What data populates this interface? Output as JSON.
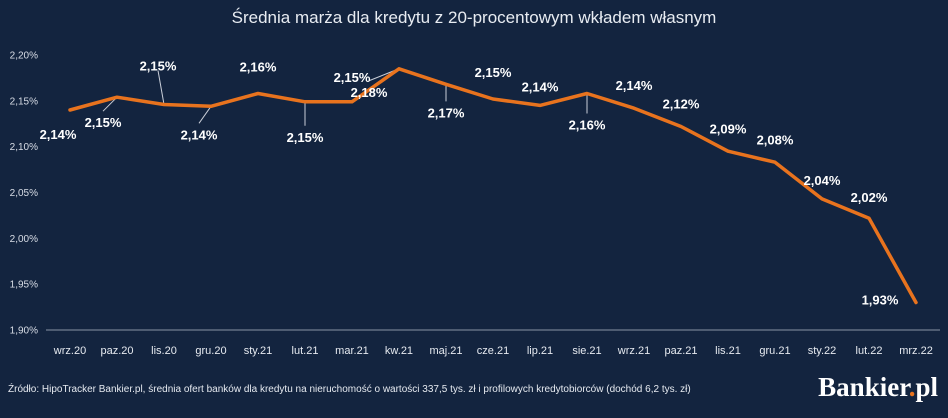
{
  "chart_data": {
    "type": "line",
    "title": "Średnia marża dla kredytu z 20-procentowym wkładem własnym",
    "categories": [
      "wrz.20",
      "paz.20",
      "lis.20",
      "gru.20",
      "sty.21",
      "lut.21",
      "mar.21",
      "kw.21",
      "maj.21",
      "cze.21",
      "lip.21",
      "sie.21",
      "wrz.21",
      "paz.21",
      "lis.21",
      "gru.21",
      "sty.22",
      "lut.22",
      "mrz.22"
    ],
    "series": [
      {
        "values": [
          2.14,
          2.154,
          2.146,
          2.144,
          2.158,
          2.149,
          2.149,
          2.185,
          2.168,
          2.152,
          2.145,
          2.158,
          2.142,
          2.122,
          2.095,
          2.083,
          2.043,
          2.022,
          1.93
        ],
        "labels": [
          "2,14%",
          "2,15%",
          "2,15%",
          "2,14%",
          "2,16%",
          "2,15%",
          "2,15%",
          "2,18%",
          "2,17%",
          "2,15%",
          "2,14%",
          "2,16%",
          "2,14%",
          "2,12%",
          "2,09%",
          "2,08%",
          "2,04%",
          "2,02%",
          "1,93%"
        ]
      }
    ],
    "yticks": [
      "1,90%",
      "1,95%",
      "2,00%",
      "2,05%",
      "2,10%",
      "2,15%",
      "2,20%"
    ],
    "ytick_values": [
      1.9,
      1.95,
      2.0,
      2.05,
      2.1,
      2.15,
      2.2
    ],
    "ylim": [
      1.9,
      2.2
    ],
    "grid": false,
    "line_color": "#e8731e",
    "background_color": "#13243f"
  },
  "footer": {
    "source": "Źródło: HipoTracker Bankier.pl, średnia ofert banków dla kredytu na nieruchomość o wartości 337,5 tys. zł i profilowych kredytobiorców (dochód 6,2 tys. zł)",
    "logo_main": "Bankier",
    "logo_dot": ".",
    "logo_suffix": "pl"
  }
}
